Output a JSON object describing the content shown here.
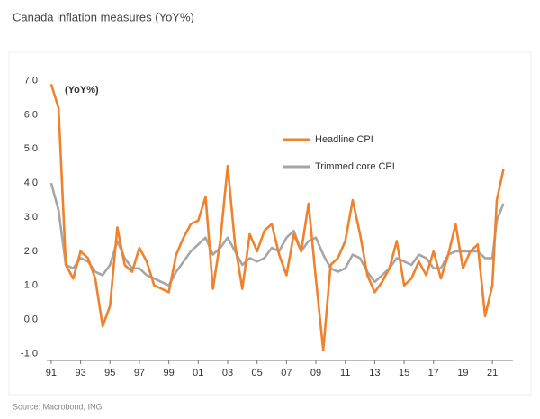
{
  "chart_data": {
    "type": "line",
    "title": "Canada inflation measures (YoY%)",
    "annotation": "(YoY%)",
    "source": "Source: Macrobond, ING",
    "x": [
      1991.0,
      1991.5,
      1992.0,
      1992.5,
      1993.0,
      1993.5,
      1994.0,
      1994.5,
      1995.0,
      1995.5,
      1996.0,
      1996.5,
      1997.0,
      1997.5,
      1998.0,
      1998.5,
      1999.0,
      1999.5,
      2000.0,
      2000.5,
      2001.0,
      2001.5,
      2002.0,
      2002.5,
      2003.0,
      2003.5,
      2004.0,
      2004.5,
      2005.0,
      2005.5,
      2006.0,
      2006.5,
      2007.0,
      2007.5,
      2008.0,
      2008.5,
      2009.0,
      2009.5,
      2010.0,
      2010.5,
      2011.0,
      2011.5,
      2012.0,
      2012.5,
      2013.0,
      2013.5,
      2014.0,
      2014.5,
      2015.0,
      2015.5,
      2016.0,
      2016.5,
      2017.0,
      2017.5,
      2018.0,
      2018.5,
      2019.0,
      2019.5,
      2020.0,
      2020.5,
      2021.0,
      2021.3,
      2021.75
    ],
    "series": [
      {
        "name": "Headline CPI",
        "color": "#f0822d",
        "values": [
          6.9,
          6.2,
          1.6,
          1.2,
          2.0,
          1.8,
          1.2,
          -0.2,
          0.4,
          2.7,
          1.6,
          1.4,
          2.1,
          1.7,
          1.0,
          0.9,
          0.8,
          1.9,
          2.4,
          2.8,
          2.9,
          3.6,
          0.9,
          2.3,
          4.5,
          2.2,
          0.9,
          2.5,
          2.0,
          2.6,
          2.8,
          1.9,
          1.3,
          2.5,
          2.0,
          3.4,
          1.2,
          -0.9,
          1.6,
          1.8,
          2.3,
          3.5,
          2.5,
          1.3,
          0.8,
          1.1,
          1.5,
          2.3,
          1.0,
          1.2,
          1.7,
          1.3,
          2.0,
          1.2,
          1.9,
          2.8,
          1.5,
          2.0,
          2.2,
          0.1,
          1.0,
          3.5,
          4.4
        ]
      },
      {
        "name": "Trimmed core CPI",
        "color": "#a6a6a6",
        "values": [
          4.0,
          3.2,
          1.6,
          1.5,
          1.8,
          1.7,
          1.4,
          1.3,
          1.6,
          2.3,
          1.8,
          1.5,
          1.5,
          1.3,
          1.2,
          1.1,
          1.0,
          1.4,
          1.7,
          2.0,
          2.2,
          2.4,
          1.9,
          2.1,
          2.4,
          2.0,
          1.6,
          1.8,
          1.7,
          1.8,
          2.1,
          2.0,
          2.4,
          2.6,
          2.0,
          2.3,
          2.4,
          1.9,
          1.5,
          1.4,
          1.5,
          1.9,
          1.8,
          1.4,
          1.1,
          1.3,
          1.5,
          1.8,
          1.7,
          1.6,
          1.9,
          1.8,
          1.5,
          1.5,
          1.9,
          2.0,
          2.0,
          2.0,
          2.0,
          1.8,
          1.8,
          2.9,
          3.4
        ]
      }
    ],
    "xlim": [
      1990.7,
      2022.4
    ],
    "xticks": [
      {
        "value": 1991,
        "label": "91"
      },
      {
        "value": 1993,
        "label": "93"
      },
      {
        "value": 1995,
        "label": "95"
      },
      {
        "value": 1997,
        "label": "97"
      },
      {
        "value": 1999,
        "label": "99"
      },
      {
        "value": 2001,
        "label": "01"
      },
      {
        "value": 2003,
        "label": "03"
      },
      {
        "value": 2005,
        "label": "05"
      },
      {
        "value": 2007,
        "label": "07"
      },
      {
        "value": 2009,
        "label": "09"
      },
      {
        "value": 2011,
        "label": "11"
      },
      {
        "value": 2013,
        "label": "13"
      },
      {
        "value": 2015,
        "label": "15"
      },
      {
        "value": 2017,
        "label": "17"
      },
      {
        "value": 2019,
        "label": "19"
      },
      {
        "value": 2021,
        "label": "21"
      }
    ],
    "ylim": [
      -1.2,
      7.2
    ],
    "yticks": [
      {
        "value": -1,
        "label": "-1.0"
      },
      {
        "value": 0,
        "label": "0.0"
      },
      {
        "value": 1,
        "label": "1.0"
      },
      {
        "value": 2,
        "label": "2.0"
      },
      {
        "value": 3,
        "label": "3.0"
      },
      {
        "value": 4,
        "label": "4.0"
      },
      {
        "value": 5,
        "label": "5.0"
      },
      {
        "value": 6,
        "label": "6.0"
      },
      {
        "value": 7,
        "label": "7.0"
      }
    ],
    "grid": false
  }
}
